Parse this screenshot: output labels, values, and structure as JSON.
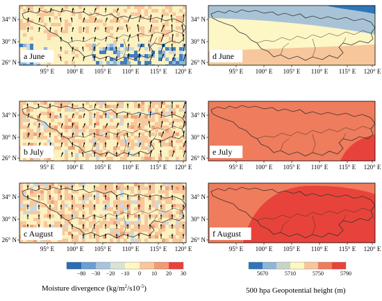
{
  "panels": [
    {
      "id": "a",
      "label": "a June",
      "variable": "moisture_divergence",
      "arrows": true
    },
    {
      "id": "b",
      "label": "b July",
      "variable": "moisture_divergence",
      "arrows": true
    },
    {
      "id": "c",
      "label": "c August",
      "variable": "moisture_divergence",
      "arrows": true
    },
    {
      "id": "d",
      "label": "d June",
      "variable": "geopotential_height_500hpa",
      "arrows": false
    },
    {
      "id": "e",
      "label": "e July",
      "variable": "geopotential_height_500hpa",
      "arrows": false
    },
    {
      "id": "f",
      "label": "f August",
      "variable": "geopotential_height_500hpa",
      "arrows": false
    }
  ],
  "left_axis": {
    "x_ticks": [
      "95° E",
      "100° E",
      "105° E",
      "110° E",
      "115° E",
      "120° E"
    ],
    "y_ticks": [
      "34° N",
      "30° N",
      "26° N"
    ]
  },
  "right_axis": {
    "x_ticks": [
      "95° E",
      "100° E",
      "105° E",
      "110° E",
      "115° E",
      "120° E"
    ],
    "y_ticks": [
      "34° N",
      "30° N",
      "26° N"
    ]
  },
  "colorbar_left": {
    "ticks": [
      "−80",
      "−30",
      "−20",
      "−10",
      "0",
      "10",
      "20",
      "30"
    ],
    "colors": [
      "#2b6cb3",
      "#6b9fd0",
      "#a7c4dc",
      "#d8e3d4",
      "#fff7c2",
      "#f7c69b",
      "#f49a72",
      "#e8433a"
    ],
    "title_prefix": "Moisture divergence  (kg/m",
    "title_sup1": "2",
    "title_mid": "/s10",
    "title_sup2": "-5",
    "title_suffix": ")"
  },
  "colorbar_right": {
    "ticks": [
      "5670",
      "5710",
      "5750",
      "5790"
    ],
    "colors": [
      "#2f76b9",
      "#8fb6d7",
      "#c8d3cc",
      "#fff7c2",
      "#f7c69b",
      "#ef7c5c",
      "#e8433a"
    ],
    "title": "500 hpa Geopotential height (m)"
  },
  "map_colors": {
    "land_base": "#fcf1c0",
    "positive_light": "#f8c89c",
    "positive_mid": "#f4a27c",
    "positive_strong": "#e9574b",
    "negative_light": "#c9d9e2",
    "negative_mid": "#8fb6d7",
    "negative_strong": "#3f7fc0",
    "gph_low": "#2f76b9",
    "gph_lowmid": "#a9c3d6",
    "gph_mid": "#fdf6c5",
    "gph_high1": "#f7c69b",
    "gph_high2": "#ef7c5c",
    "gph_high3": "#e8433a"
  }
}
